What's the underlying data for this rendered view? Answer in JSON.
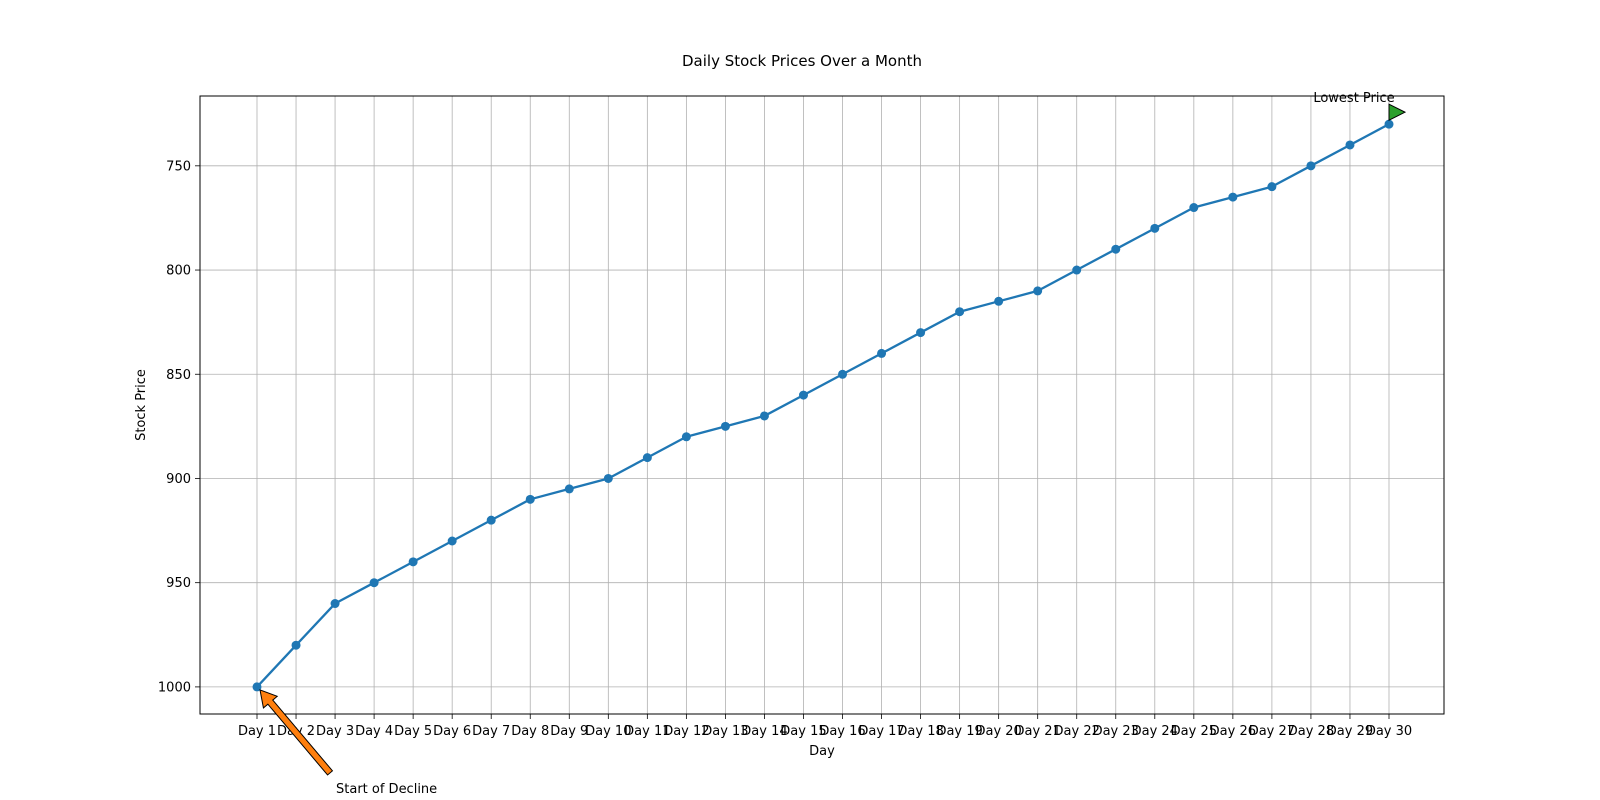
{
  "chart_data": {
    "type": "line",
    "title": "Daily Stock Prices Over a Month",
    "xlabel": "Day",
    "ylabel": "Stock Price",
    "categories": [
      "Day 1",
      "Day 2",
      "Day 3",
      "Day 4",
      "Day 5",
      "Day 6",
      "Day 7",
      "Day 8",
      "Day 9",
      "Day 10",
      "Day 11",
      "Day 12",
      "Day 13",
      "Day 14",
      "Day 15",
      "Day 16",
      "Day 17",
      "Day 18",
      "Day 19",
      "Day 20",
      "Day 21",
      "Day 22",
      "Day 23",
      "Day 24",
      "Day 25",
      "Day 26",
      "Day 27",
      "Day 28",
      "Day 29",
      "Day 30"
    ],
    "series": [
      {
        "values": [
          1000,
          980,
          960,
          950,
          940,
          930,
          920,
          910,
          905,
          900,
          890,
          880,
          875,
          870,
          860,
          850,
          840,
          830,
          820,
          815,
          810,
          800,
          790,
          780,
          770,
          765,
          760,
          750,
          740,
          730
        ],
        "color": "#1f77b4"
      }
    ],
    "y_inverted": true,
    "ylim": [
      1013,
      716.5
    ],
    "yticks": [
      750,
      800,
      850,
      900,
      950,
      1000
    ],
    "grid": true,
    "annotations": [
      {
        "text": "Start of Decline",
        "target": "Day 1",
        "target_value": 1000,
        "arrow_color": "#ff7f0e"
      },
      {
        "text": "Lowest Price",
        "target": "Day 30",
        "target_value": 730,
        "arrow_color": "#2ca02c"
      }
    ]
  }
}
